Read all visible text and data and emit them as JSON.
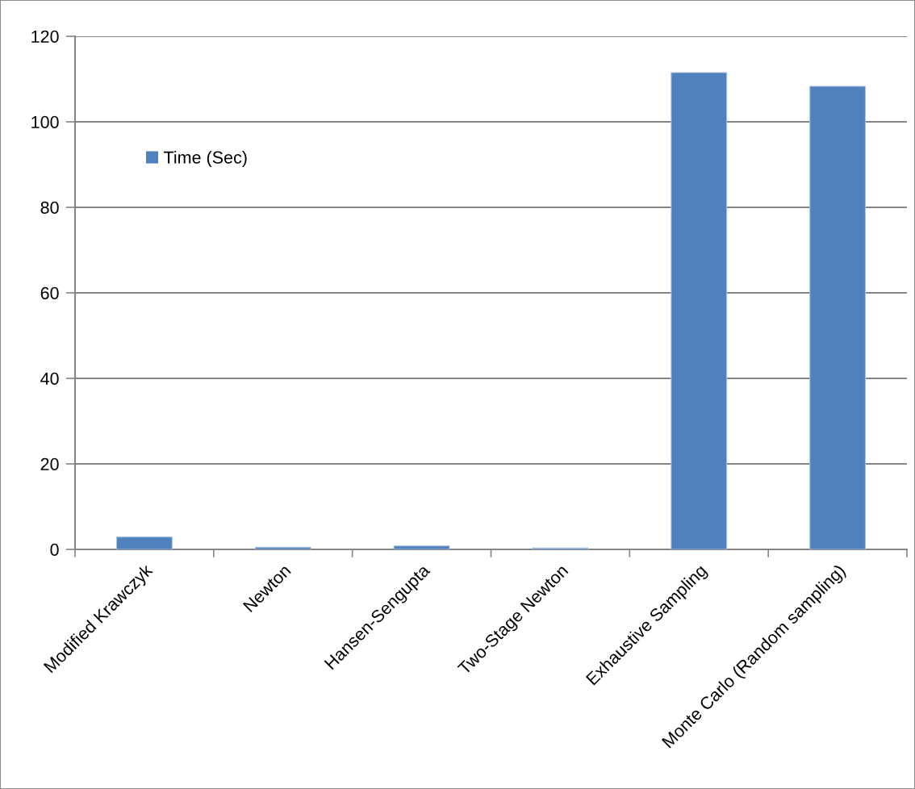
{
  "chart_data": {
    "type": "bar",
    "categories": [
      "Modified Krawczyk",
      "Newton",
      "Hansen-Sengupta",
      "Two-Stage Newton",
      "Exhaustive Sampling",
      "Monte Carlo (Random sampling)"
    ],
    "series": [
      {
        "name": "Time (Sec)",
        "color": "#4f81bd",
        "values": [
          2.9,
          0.5,
          0.8,
          0.3,
          111.5,
          108.3
        ]
      }
    ],
    "ylim": [
      0,
      120
    ],
    "yticks": [
      0,
      20,
      40,
      60,
      80,
      100,
      120
    ],
    "grid": "y",
    "legend": "top left"
  }
}
